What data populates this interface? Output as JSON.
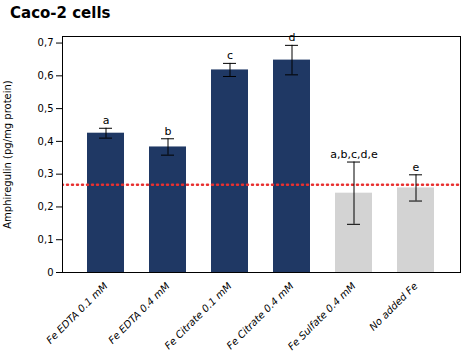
{
  "chart_data": {
    "type": "bar",
    "title": "Caco-2 cells",
    "ylabel": "Amphiregulin (pg/mg protein)",
    "categories": [
      "Fe EDTA 0.1 mM",
      "Fe EDTA 0.4 mM",
      "Fe Citrate 0.1 mM",
      "Fe Citrate 0.4 mM",
      "Fe Sulfate 0.4 mM",
      "No added Fe"
    ],
    "values": [
      0.425,
      0.383,
      0.618,
      0.648,
      0.242,
      0.258
    ],
    "errors": [
      0.015,
      0.025,
      0.02,
      0.045,
      0.095,
      0.04
    ],
    "colors": [
      "#1f3864",
      "#1f3864",
      "#1f3864",
      "#1f3864",
      "#d3d3d3",
      "#d3d3d3"
    ],
    "significance_labels": [
      "a",
      "b",
      "c",
      "d",
      "a,b,c,d,e",
      "e"
    ],
    "hline": {
      "y": 0.268,
      "color": "#e83030",
      "line_style": "dotted"
    },
    "ylim": [
      0,
      0.72
    ],
    "yticks": [
      0,
      {
        "value": 0.1,
        "label": "0,1"
      },
      {
        "value": 0.2,
        "label": "0,2"
      },
      {
        "value": 0.3,
        "label": "0,3"
      },
      {
        "value": 0.4,
        "label": "0,4"
      },
      {
        "value": 0.5,
        "label": "0,5"
      },
      {
        "value": 0.6,
        "label": "0,6"
      },
      {
        "value": 0.7,
        "label": "0,7"
      }
    ],
    "grid": false
  }
}
